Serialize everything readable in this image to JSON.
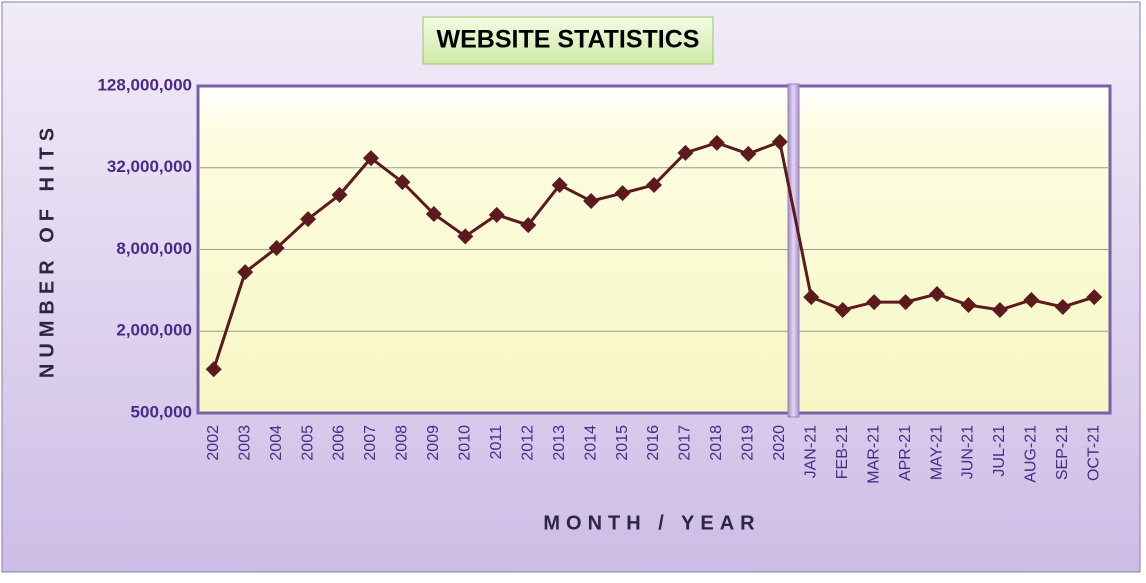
{
  "chart_data": {
    "type": "line",
    "title": "WEBSITE STATISTICS",
    "x_label": "MONTH / YEAR",
    "y_label": "NUMBER OF HITS",
    "categories": [
      "2002",
      "2003",
      "2004",
      "2005",
      "2006",
      "2007",
      "2008",
      "2009",
      "2010",
      "2011",
      "2012",
      "2013",
      "2014",
      "2015",
      "2016",
      "2017",
      "2018",
      "2019",
      "2020",
      "JAN-21",
      "FEB-21",
      "MAR-21",
      "APR-21",
      "MAY-21",
      "JUN-21",
      "JUL-21",
      "AUG-21",
      "SEP-21",
      "OCT-21"
    ],
    "series": [
      {
        "name": "Hits",
        "color": "#5c1a1f",
        "values": [
          1050000,
          5450000,
          8200000,
          13400000,
          20200000,
          37700000,
          25100000,
          14600000,
          10000000,
          14400000,
          12100000,
          23900000,
          18200000,
          20800000,
          23900000,
          41200000,
          48800000,
          40500000,
          49600000,
          3570000,
          2870000,
          3280000,
          3280000,
          3760000,
          3120000,
          2870000,
          3400000,
          3020000,
          3570000
        ]
      }
    ],
    "ylim": [
      500000,
      128000000
    ],
    "log_scale": true,
    "grid": true,
    "yticks": [
      {
        "value": 500000,
        "label": "500,000"
      },
      {
        "value": 2000000,
        "label": "2,000,000"
      },
      {
        "value": 8000000,
        "label": "8,000,000"
      },
      {
        "value": 32000000,
        "label": "32,000,000"
      },
      {
        "value": 128000000,
        "label": "128,000,000"
      }
    ]
  }
}
